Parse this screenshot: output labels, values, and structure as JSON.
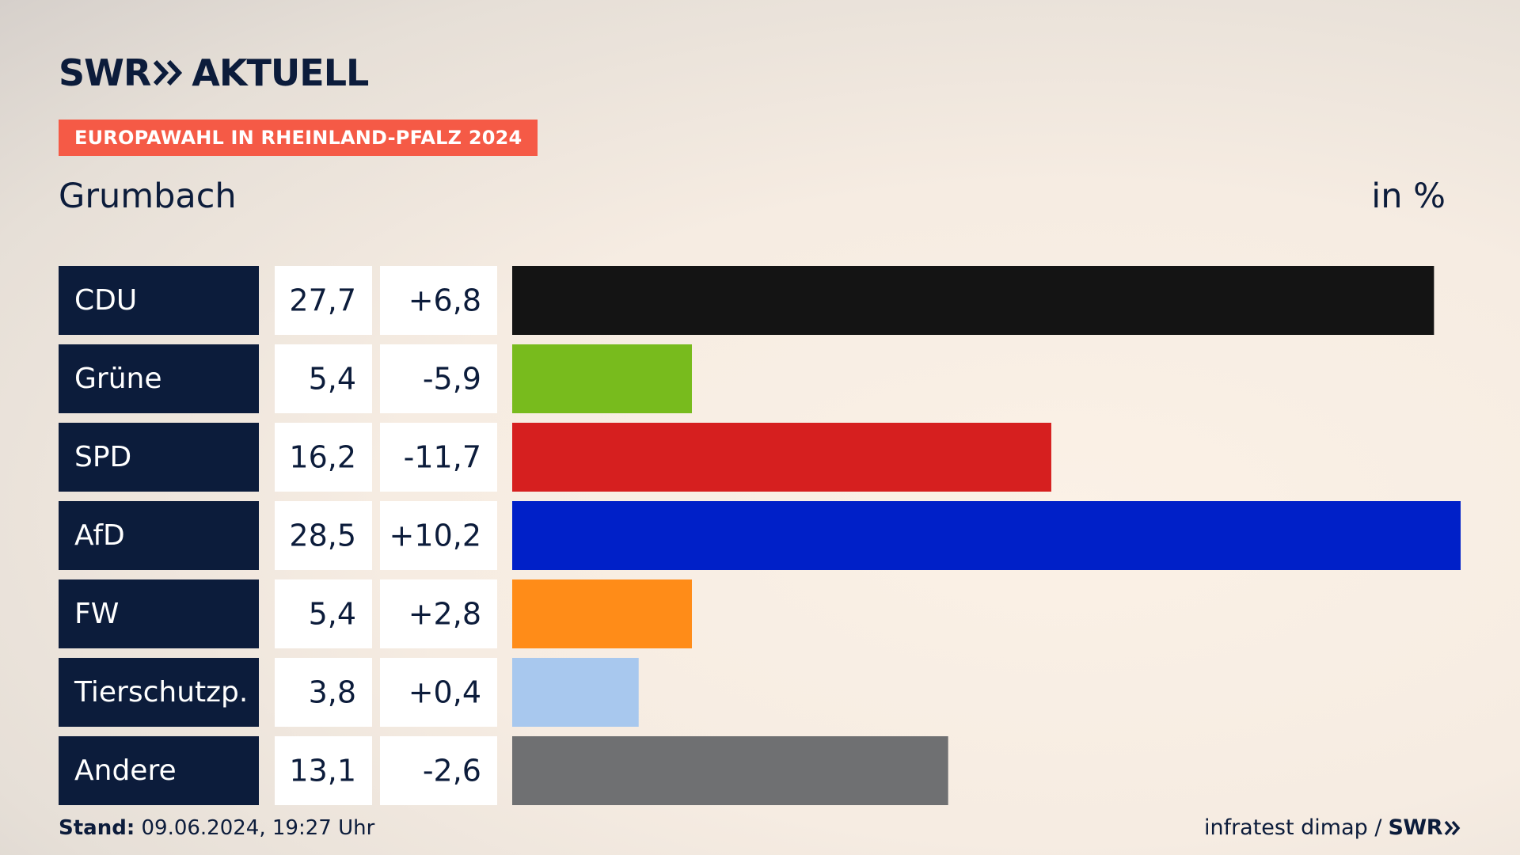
{
  "header": {
    "logo_swr": "SWR",
    "logo_product": "AKTUELL",
    "banner": "EUROPAWAHL IN RHEINLAND-PFALZ 2024",
    "place": "Grumbach",
    "unit": "in %"
  },
  "chart_data": {
    "type": "bar",
    "orientation": "horizontal",
    "title": "Grumbach",
    "subtitle": "EUROPAWAHL IN RHEINLAND-PFALZ 2024",
    "unit_label": "in %",
    "xlim": [
      0,
      28.5
    ],
    "categories": [
      "CDU",
      "Grüne",
      "SPD",
      "AfD",
      "FW",
      "Tierschutzp.",
      "Andere"
    ],
    "values": [
      27.7,
      5.4,
      16.2,
      28.5,
      5.4,
      3.8,
      13.1
    ],
    "value_labels": [
      "27,7",
      "5,4",
      "16,2",
      "28,5",
      "5,4",
      "3,8",
      "13,1"
    ],
    "change_labels": [
      "+6,8",
      "-5,9",
      "-11,7",
      "+10,2",
      "+2,8",
      "+0,4",
      "-2,6"
    ],
    "colors": [
      "#141414",
      "#78bb1d",
      "#d61f1f",
      "#0020c8",
      "#ff8c18",
      "#a8c8ee",
      "#6f7072"
    ]
  },
  "footer": {
    "stand_label": "Stand:",
    "stand_value": "09.06.2024, 19:27 Uhr",
    "source": "infratest dimap /",
    "source_logo": "SWR"
  }
}
